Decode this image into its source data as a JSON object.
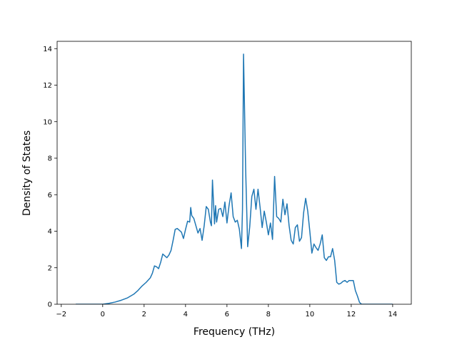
{
  "chart_data": {
    "type": "line",
    "title": "",
    "xlabel": "Frequency (THz)",
    "ylabel": "Density of States",
    "xlim": [
      -2.2,
      14.9
    ],
    "ylim": [
      0,
      14.4
    ],
    "xticks": [
      -2,
      0,
      2,
      4,
      6,
      8,
      10,
      12,
      14
    ],
    "yticks": [
      0,
      2,
      4,
      6,
      8,
      10,
      12,
      14
    ],
    "x_tick_labels": [
      "−2",
      "0",
      "2",
      "4",
      "6",
      "8",
      "10",
      "12",
      "14"
    ],
    "y_tick_labels": [
      "0",
      "2",
      "4",
      "6",
      "8",
      "10",
      "12",
      "14"
    ],
    "grid": false,
    "series": [
      {
        "color": "#1f77b4",
        "x": [
          -1.3,
          -0.5,
          0.0,
          0.3,
          0.6,
          0.9,
          1.2,
          1.5,
          1.7,
          1.9,
          2.1,
          2.3,
          2.4,
          2.5,
          2.6,
          2.7,
          2.8,
          2.9,
          3.1,
          3.2,
          3.3,
          3.4,
          3.5,
          3.6,
          3.7,
          3.8,
          3.9,
          4.0,
          4.1,
          4.2,
          4.25,
          4.3,
          4.4,
          4.5,
          4.6,
          4.7,
          4.8,
          4.9,
          5.0,
          5.1,
          5.2,
          5.25,
          5.3,
          5.4,
          5.45,
          5.5,
          5.6,
          5.7,
          5.8,
          5.9,
          6.0,
          6.1,
          6.2,
          6.3,
          6.4,
          6.5,
          6.6,
          6.7,
          6.75,
          6.8,
          6.9,
          7.0,
          7.1,
          7.2,
          7.3,
          7.4,
          7.5,
          7.6,
          7.7,
          7.8,
          7.9,
          8.0,
          8.1,
          8.2,
          8.3,
          8.4,
          8.5,
          8.6,
          8.7,
          8.8,
          8.9,
          9.0,
          9.1,
          9.2,
          9.3,
          9.4,
          9.5,
          9.6,
          9.7,
          9.8,
          9.9,
          10.0,
          10.1,
          10.2,
          10.3,
          10.4,
          10.5,
          10.6,
          10.7,
          10.8,
          10.9,
          11.0,
          11.1,
          11.2,
          11.3,
          11.4,
          11.5,
          11.6,
          11.7,
          11.8,
          11.9,
          12.0,
          12.1,
          12.2,
          12.3,
          12.4,
          12.5,
          12.6,
          12.8,
          13.0,
          13.5,
          14.0
        ],
        "y": [
          0.0,
          0.0,
          0.0,
          0.05,
          0.12,
          0.22,
          0.35,
          0.55,
          0.75,
          1.0,
          1.2,
          1.45,
          1.7,
          2.1,
          2.05,
          1.95,
          2.3,
          2.75,
          2.55,
          2.7,
          2.95,
          3.5,
          4.1,
          4.15,
          4.05,
          3.95,
          3.6,
          4.1,
          4.55,
          4.5,
          5.3,
          4.85,
          4.7,
          4.3,
          3.9,
          4.15,
          3.5,
          4.3,
          5.35,
          5.2,
          4.5,
          4.3,
          6.8,
          4.4,
          5.4,
          4.5,
          5.2,
          5.25,
          4.8,
          5.6,
          4.45,
          5.4,
          6.1,
          4.8,
          4.5,
          4.6,
          4.1,
          3.05,
          5.2,
          13.7,
          7.5,
          3.15,
          4.25,
          5.9,
          6.3,
          5.2,
          6.3,
          5.3,
          4.2,
          5.1,
          4.5,
          3.8,
          4.45,
          3.55,
          7.0,
          4.8,
          4.7,
          4.5,
          5.75,
          4.9,
          5.5,
          4.3,
          3.5,
          3.3,
          4.2,
          4.35,
          3.45,
          3.65,
          5.0,
          5.8,
          5.1,
          4.0,
          2.8,
          3.3,
          3.1,
          2.95,
          3.3,
          3.8,
          2.55,
          2.4,
          2.6,
          2.6,
          3.05,
          2.4,
          1.2,
          1.1,
          1.15,
          1.25,
          1.3,
          1.2,
          1.3,
          1.3,
          1.3,
          0.75,
          0.45,
          0.1,
          0.0,
          0.0,
          0.0,
          0.0,
          0.0,
          0.0
        ]
      }
    ]
  }
}
